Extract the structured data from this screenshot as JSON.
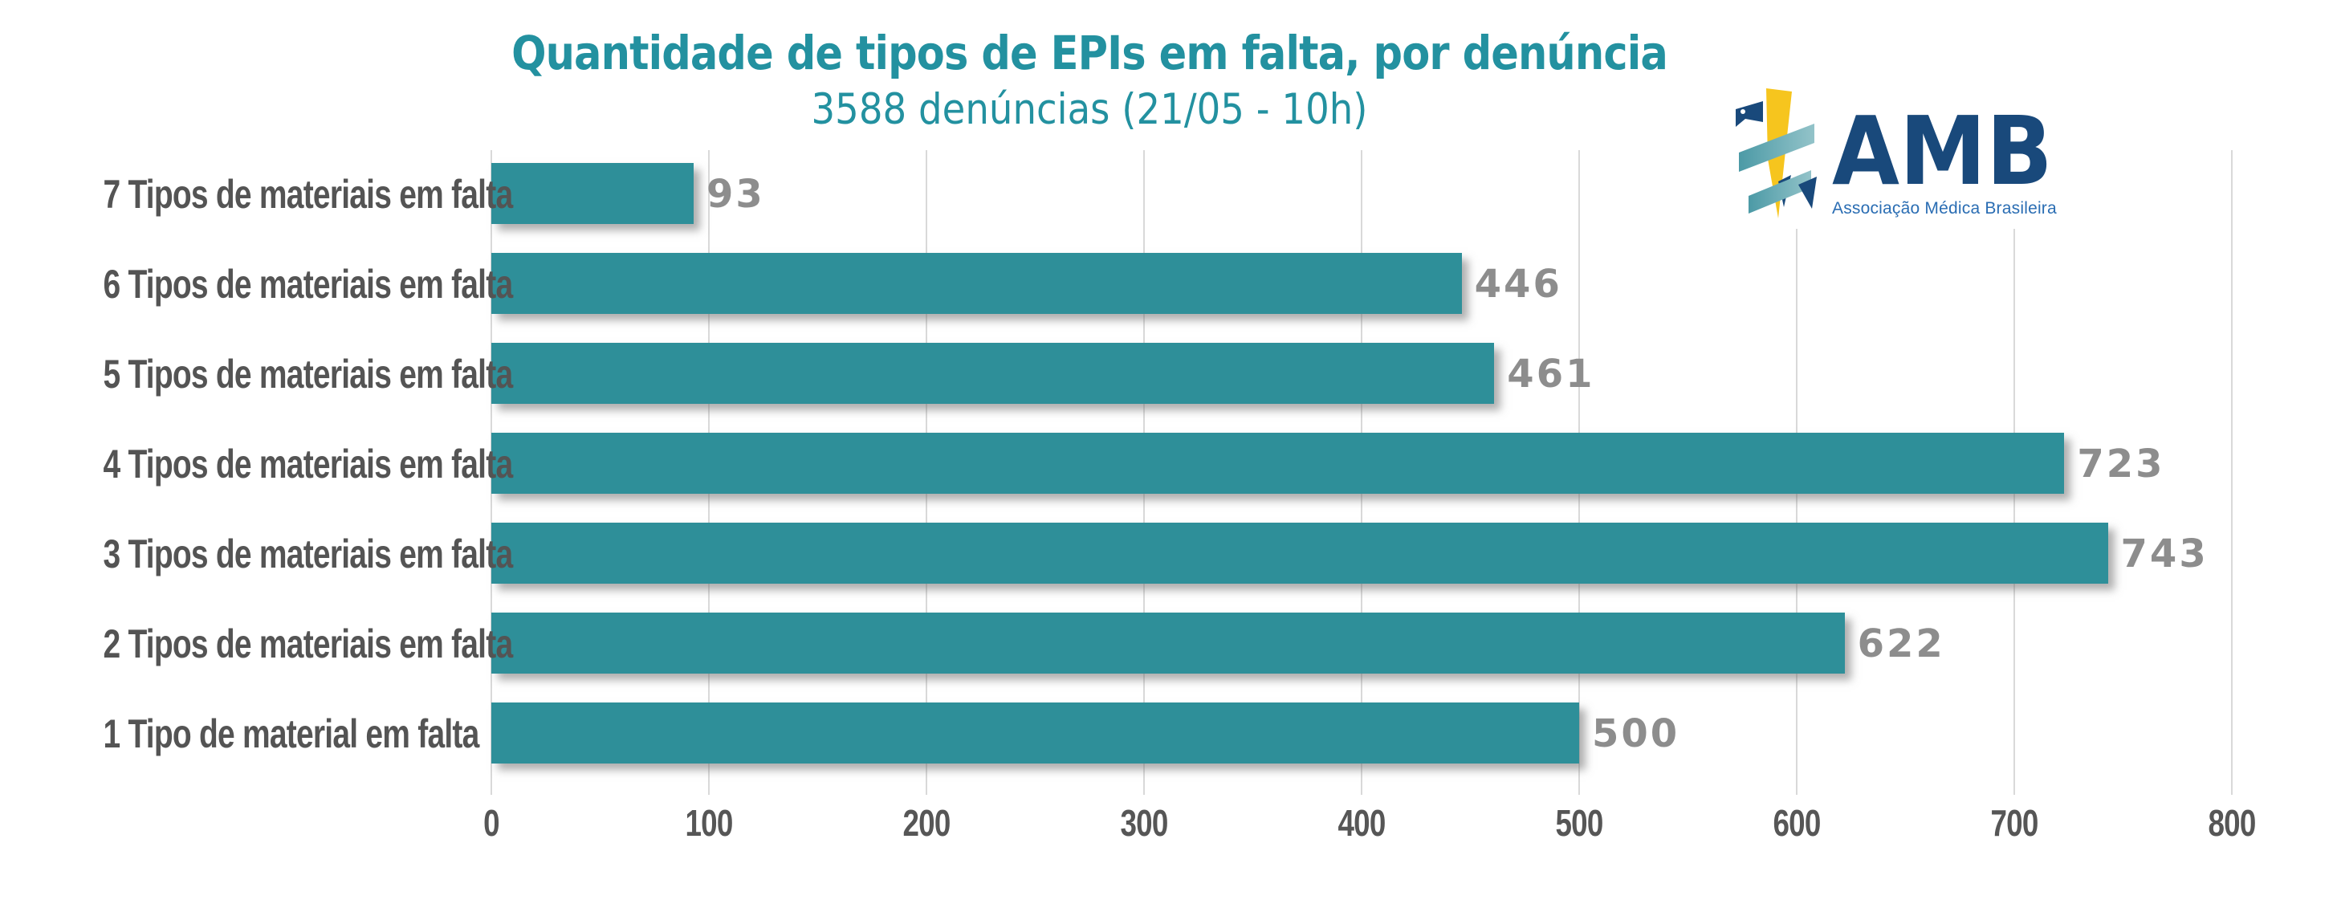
{
  "title": "Quantidade de tipos de EPIs em falta, por denúncia",
  "subtitle": "3588 denúncias (21/05 - 10h)",
  "logo": {
    "acronym": "AMB",
    "caption": "Associação Médica Brasileira"
  },
  "colors": {
    "background": "#ffffff",
    "bar": "#2e8f99",
    "title_teal": "#2391a0",
    "category_label_gray": "#545454",
    "value_label_gray": "#8d8d8d",
    "tick_label_gray": "#565656",
    "gridline_gray": "#d9d9d9",
    "logo_navy": "#19497b",
    "logo_caption_blue": "#2a6db3",
    "logo_teal": "#4c9aa6",
    "logo_teal_light": "#93c3c9",
    "logo_yellow": "#f6c51e"
  },
  "chart_data": {
    "type": "bar",
    "orientation": "horizontal",
    "title": "Quantidade de tipos de EPIs em falta, por denúncia",
    "subtitle": "3588 denúncias (21/05 - 10h)",
    "categories": [
      "7 Tipos de materiais em falta",
      "6 Tipos de materiais em falta",
      "5 Tipos de materiais em falta",
      "4 Tipos de materiais em falta",
      "3 Tipos de materiais em falta",
      "2 Tipos de materiais em falta",
      "1 Tipo de material em falta"
    ],
    "values": [
      93,
      446,
      461,
      723,
      743,
      622,
      500
    ],
    "xlim": [
      0,
      800
    ],
    "xticks": [
      0,
      100,
      200,
      300,
      400,
      500,
      600,
      700,
      800
    ],
    "grid": "vertical-only",
    "legend": "none",
    "data_labels": "end-of-bar"
  }
}
